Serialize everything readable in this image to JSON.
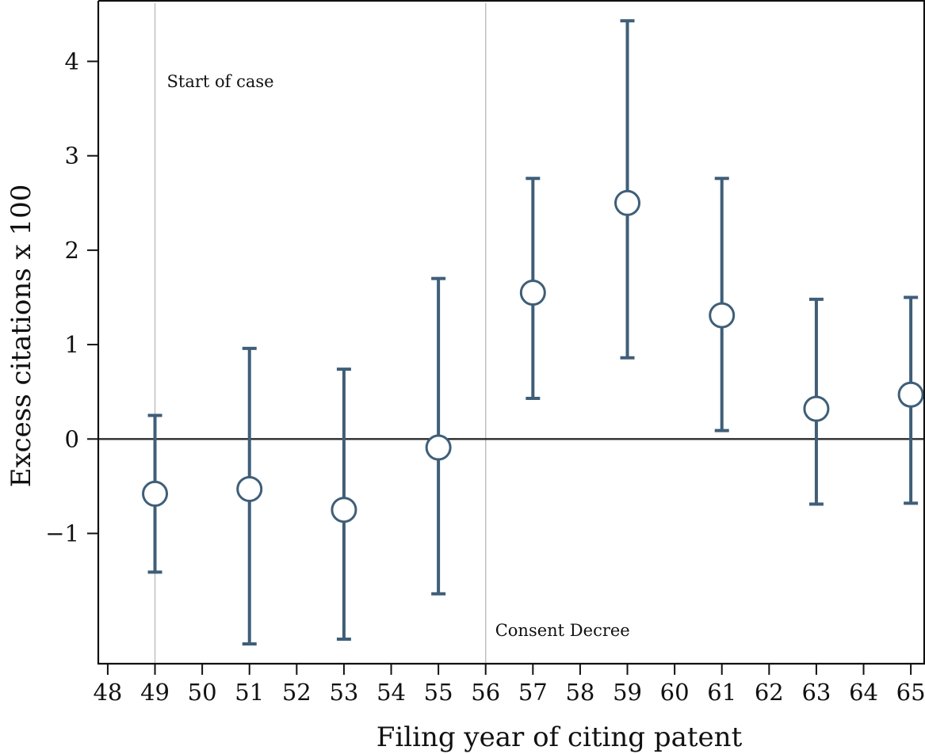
{
  "chart_data": {
    "type": "scatter",
    "subtype": "point-with-error-bars",
    "title": "",
    "xlabel": "Filing year of citing patent",
    "ylabel": "Excess citations x 100",
    "xlim": [
      47.8,
      65.3
    ],
    "ylim": [
      -2.38,
      4.65
    ],
    "x_ticks": [
      48,
      49,
      50,
      51,
      52,
      53,
      54,
      55,
      56,
      57,
      58,
      59,
      60,
      61,
      62,
      63,
      64,
      65
    ],
    "y_ticks": [
      -1,
      0,
      1,
      2,
      3,
      4
    ],
    "y_tick_labels": [
      "−1",
      "0",
      "1",
      "2",
      "3",
      "4"
    ],
    "grid": false,
    "legend": "none",
    "reference_lines": {
      "horizontal": [
        {
          "y": 0,
          "color": "#2b2b2b"
        }
      ],
      "vertical": [
        {
          "x": 49,
          "label": "Start of case",
          "color": "#b8b8b8",
          "label_position": "top"
        },
        {
          "x": 56,
          "label": "Consent Decree",
          "color": "#b8b8b8",
          "label_position": "bottom"
        }
      ]
    },
    "series": [
      {
        "marker": "hollow-circle",
        "color": "#3f5e78",
        "points": [
          {
            "x": 49,
            "y": -0.58,
            "low": -1.41,
            "high": 0.25
          },
          {
            "x": 51,
            "y": -0.53,
            "low": -2.17,
            "high": 0.96
          },
          {
            "x": 53,
            "y": -0.75,
            "low": -2.12,
            "high": 0.74
          },
          {
            "x": 55,
            "y": -0.09,
            "low": -1.64,
            "high": 1.7
          },
          {
            "x": 57,
            "y": 1.55,
            "low": 0.43,
            "high": 2.76
          },
          {
            "x": 59,
            "y": 2.5,
            "low": 0.86,
            "high": 4.43
          },
          {
            "x": 61,
            "y": 1.31,
            "low": 0.09,
            "high": 2.76
          },
          {
            "x": 63,
            "y": 0.32,
            "low": -0.69,
            "high": 1.48
          },
          {
            "x": 65,
            "y": 0.47,
            "low": -0.68,
            "high": 1.5
          }
        ]
      }
    ]
  }
}
